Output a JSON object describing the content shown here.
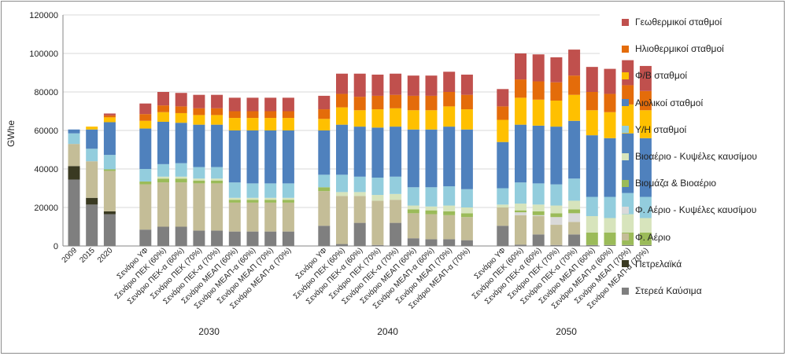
{
  "chart_data": {
    "type": "bar",
    "stacked": true,
    "ylabel": "GWhe",
    "ylim": [
      0,
      120000
    ],
    "yticks": [
      0,
      20000,
      40000,
      60000,
      80000,
      100000,
      120000
    ],
    "ytick_labels": [
      "0",
      "20000",
      "40000",
      "60000",
      "80000",
      "100000",
      "120000"
    ],
    "grid": true,
    "legend_position": "right",
    "categories": [
      "2009",
      "2015",
      "2020",
      "Σενάριο ΥΦ",
      "Σενάριο ΠΕΚ (60%)",
      "Σενάριο ΠΕΚ-α (60%)",
      "Σενάριο ΠΕΚ (70%)",
      "Σενάριο ΠΕΚ-α (70%)",
      "Σενάριο ΜΕΑΠ (60%)",
      "Σενάριο ΜΕΑΠ-α (60%)",
      "Σενάριο ΜΕΑΠ (70%)",
      "Σενάριο ΜΕΑΠ-α (70%)",
      "Σενάριο ΥΦ",
      "Σενάριο ΠΕΚ (60%)",
      "Σενάριο ΠΕΚ-α (60%)",
      "Σενάριο ΠΕΚ (70%)",
      "Σενάριο ΠΕΚ-α (70%)",
      "Σενάριο ΜΕΑΠ (60%)",
      "Σενάριο ΜΕΑΠ-α (60%)",
      "Σενάριο ΜΕΑΠ (70%)",
      "Σενάριο ΜΕΑΠ-α (70%)",
      "Σενάριο ΥΦ",
      "Σενάριο ΠΕΚ (60%)",
      "Σενάριο ΠΕΚ-α (60%)",
      "Σενάριο ΠΕΚ (70%)",
      "Σενάριο ΠΕΚ-α (70%)",
      "Σενάριο ΜΕΑΠ (60%)",
      "Σενάριο ΜΕΑΠ-α (60%)",
      "Σενάριο ΜΕΑΠ (70%)",
      "Σενάριο ΜΕΑΠ-α (70%)"
    ],
    "groups": [
      {
        "label": "2030",
        "start": 3,
        "end": 11
      },
      {
        "label": "2040",
        "start": 12,
        "end": 20
      },
      {
        "label": "2050",
        "start": 21,
        "end": 29
      }
    ],
    "series": [
      {
        "name": "Στερεά Καύσιμα",
        "color": "#7f7f7f",
        "values": [
          34500,
          21500,
          16500,
          8500,
          10000,
          10000,
          8000,
          8000,
          7500,
          7500,
          7500,
          7500,
          10500,
          1000,
          12000,
          500,
          12000,
          4000,
          3500,
          3500,
          3000,
          10500,
          700,
          6000,
          500,
          6000,
          500,
          500,
          500,
          500
        ]
      },
      {
        "name": "Πετρελαϊκά",
        "color": "#3a3a22",
        "values": [
          7000,
          3500,
          1500,
          0,
          0,
          0,
          0,
          0,
          0,
          0,
          0,
          0,
          0,
          0,
          0,
          0,
          0,
          0,
          0,
          0,
          0,
          0,
          0,
          0,
          0,
          0,
          0,
          0,
          0,
          0
        ]
      },
      {
        "name": "Φ. Αέριο",
        "color": "#c4bd97",
        "values": [
          11500,
          19000,
          21000,
          23500,
          23000,
          23000,
          24500,
          24500,
          15000,
          15000,
          15000,
          15000,
          18000,
          25000,
          14000,
          23000,
          12000,
          13000,
          13000,
          12500,
          12000,
          9500,
          15300,
          9500,
          10500,
          6500,
          0,
          0,
          0,
          0
        ]
      },
      {
        "name": "Φ. Αέριο - Κυψέλες καυσίμου",
        "color": "#d9d9d9",
        "values": [
          0,
          0,
          0,
          0,
          0,
          0,
          0,
          0,
          0,
          0,
          0,
          0,
          0,
          0,
          0,
          0,
          0,
          0,
          0,
          0,
          0,
          0,
          1500,
          500,
          4000,
          4500,
          0,
          0,
          0,
          0
        ]
      },
      {
        "name": "Βιομάζα & Βιοαέριο",
        "color": "#9bbb59",
        "values": [
          0,
          0,
          800,
          1500,
          2000,
          2000,
          1500,
          1500,
          1500,
          1500,
          1500,
          1500,
          2000,
          0,
          0,
          0,
          0,
          2000,
          2000,
          2000,
          2000,
          0,
          1000,
          2000,
          2000,
          2000,
          6500,
          6500,
          6500,
          6500
        ]
      },
      {
        "name": "Βιοαέριο - Κυψέλες καυσίμου",
        "color": "#d7e4bc",
        "values": [
          0,
          0,
          0,
          0,
          1000,
          1000,
          1000,
          1000,
          1000,
          1000,
          1000,
          1000,
          0,
          2000,
          2000,
          3000,
          3000,
          2000,
          2000,
          3000,
          3000,
          1500,
          3500,
          3500,
          4000,
          4500,
          8500,
          7500,
          9500,
          7500
        ]
      },
      {
        "name": "Υ/Η σταθμοί",
        "color": "#93cddd",
        "values": [
          5500,
          6500,
          7500,
          6500,
          6500,
          7000,
          6000,
          6000,
          8000,
          7500,
          7500,
          7500,
          6500,
          9000,
          8000,
          9000,
          9000,
          9500,
          10000,
          10000,
          9500,
          8500,
          11000,
          11000,
          11000,
          11500,
          10000,
          11000,
          11000,
          11000
        ]
      },
      {
        "name": "Αιολικοί σταθμοί",
        "color": "#4f81bd",
        "values": [
          2000,
          10000,
          17000,
          21000,
          22000,
          21000,
          22000,
          22000,
          27000,
          27500,
          27500,
          27500,
          23000,
          26000,
          26000,
          26000,
          26000,
          30000,
          30000,
          31000,
          31000,
          24000,
          30000,
          30000,
          30000,
          30000,
          32000,
          30500,
          31000,
          30500
        ]
      },
      {
        "name": "Φ/Β σταθμοί",
        "color": "#ffc000",
        "values": [
          0,
          1500,
          2500,
          4000,
          5000,
          5000,
          5000,
          5000,
          6500,
          6500,
          6500,
          6500,
          6000,
          9000,
          8500,
          9500,
          9500,
          10000,
          10000,
          10500,
          10500,
          11500,
          14000,
          13500,
          13500,
          13500,
          13000,
          13500,
          15000,
          14500
        ]
      },
      {
        "name": "Ηλιοθερμικοί σταθμοί",
        "color": "#e46c0a",
        "values": [
          0,
          0,
          1000,
          3500,
          3500,
          3500,
          3500,
          3500,
          3500,
          3500,
          3500,
          3500,
          5000,
          7000,
          7000,
          7000,
          7000,
          7500,
          7500,
          7500,
          7500,
          7000,
          9500,
          9500,
          9500,
          10000,
          9500,
          9500,
          10000,
          10000
        ]
      },
      {
        "name": "Γεωθερμικοί σταθμοί",
        "color": "#c0504d",
        "values": [
          0,
          0,
          1000,
          5500,
          7000,
          7000,
          7000,
          7000,
          7000,
          7000,
          7000,
          7000,
          7000,
          10500,
          12000,
          11000,
          11000,
          10500,
          10500,
          10500,
          10500,
          9000,
          13500,
          14000,
          13000,
          13500,
          13000,
          13000,
          13000,
          13000
        ]
      }
    ]
  }
}
